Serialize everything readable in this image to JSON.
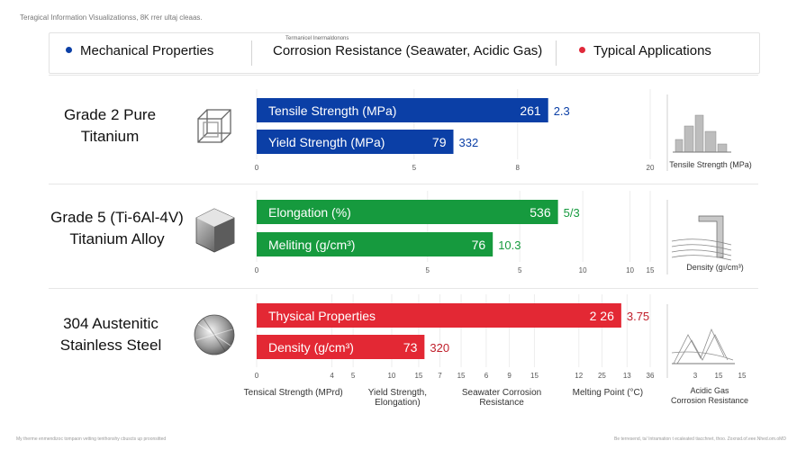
{
  "page": {
    "caption": "Teragical Information Visualizationss, 8K rrer ultaj cleaas.",
    "footer_left": "My therme enmendizoc tompaon vetting tenthonshy cbuscts up proonsitted",
    "footer_right": "Be terresend, ts/ Intramation t ecaleated tiacchnet, thoo. Zoxnsd.of.eee.Nhed.om.oMD"
  },
  "header": {
    "mechanical": "Mechanical Properties",
    "corrosion": "Corrosion Resistance (Seawater, Acidic Gas)",
    "corrosion_small": "Termanicel Inermaldonons",
    "applications": "Typical Applications",
    "colors": {
      "mechanical": "#0b3fa6",
      "applications": "#e0293a"
    }
  },
  "materials": [
    {
      "name_line1": "Grade 2 Pure",
      "name_line2": "Titanium",
      "icon": "wireframe-cube-icon"
    },
    {
      "name_line1": "Grade 5 (Ti-6Al-4V)",
      "name_line2": "Titanium Alloy",
      "icon": "solid-cube-icon"
    },
    {
      "name_line1": "304 Austenitic",
      "name_line2": "Stainless Steel",
      "icon": "steel-disc-icon"
    }
  ],
  "chart_data": [
    {
      "type": "bar",
      "orientation": "horizontal",
      "color": "#0b3fa6",
      "categories": [
        "Tensile Strength (MPa)",
        "Yield Strength (MPa)"
      ],
      "values": [
        20,
        13.5
      ],
      "value_labels": [
        "261",
        "79"
      ],
      "side_labels": [
        "2.3",
        "332"
      ],
      "xlim": [
        0,
        27
      ],
      "ticks": [
        {
          "value": 0,
          "label": "0"
        },
        {
          "value": 10.8,
          "label": "5"
        },
        {
          "value": 17.9,
          "label": "8"
        },
        {
          "value": 27,
          "label": "20"
        }
      ],
      "thumbnail_label": "Tensile Strength (MPa)"
    },
    {
      "type": "bar",
      "orientation": "horizontal",
      "color": "#169a3e",
      "categories": [
        "Elongation (%)",
        "Meliting (g/cm³)"
      ],
      "values": [
        13.4,
        10.5
      ],
      "value_labels": [
        "536",
        "76"
      ],
      "side_labels": [
        "5/3",
        "10.3"
      ],
      "xlim": [
        0,
        17.5
      ],
      "ticks": [
        {
          "value": 0,
          "label": "0"
        },
        {
          "value": 7.6,
          "label": "5"
        },
        {
          "value": 11.7,
          "label": "5"
        },
        {
          "value": 14.5,
          "label": "10"
        },
        {
          "value": 16.6,
          "label": "10"
        },
        {
          "value": 17.5,
          "label": "15"
        }
      ],
      "thumbnail_label": "Density (gı/cm³)"
    },
    {
      "type": "bar",
      "orientation": "horizontal",
      "color": "#e32834",
      "categories": [
        "Thysical Properties",
        "Density (g/cm³)"
      ],
      "values": [
        18.9,
        8.7
      ],
      "value_labels": [
        "2 26",
        "73"
      ],
      "side_labels": [
        "3.75",
        "320"
      ],
      "xlim": [
        0,
        20.4
      ],
      "ticks": [
        {
          "value": 0,
          "label": "0"
        },
        {
          "value": 3.9,
          "label": "4"
        },
        {
          "value": 5,
          "label": "5"
        },
        {
          "value": 7,
          "label": "10"
        },
        {
          "value": 8.4,
          "label": "15"
        },
        {
          "value": 9.5,
          "label": "7"
        },
        {
          "value": 10.6,
          "label": "15"
        },
        {
          "value": 11.9,
          "label": "6"
        },
        {
          "value": 13.1,
          "label": "9"
        },
        {
          "value": 14.4,
          "label": "15"
        },
        {
          "value": 16.7,
          "label": "12"
        },
        {
          "value": 17.9,
          "label": "25"
        },
        {
          "value": 19.2,
          "label": "13"
        },
        {
          "value": 20.4,
          "label": "36"
        }
      ],
      "extra_ticks": [
        "3",
        "15",
        "15"
      ],
      "xlabels": [
        {
          "text": "Tensical Strength (MPrd)",
          "x": 1.9
        },
        {
          "text": "Yield Strength,",
          "text2": "Elongation)",
          "x": 7.3
        },
        {
          "text": "Seawater Corrosion",
          "text2": "Resistance",
          "x": 12.7
        },
        {
          "text": "Melting Point (°C)",
          "x": 18.2
        }
      ],
      "thumbnail_label": "Acidic Gas",
      "thumbnail_label2": "Corrosion Resistance"
    }
  ]
}
